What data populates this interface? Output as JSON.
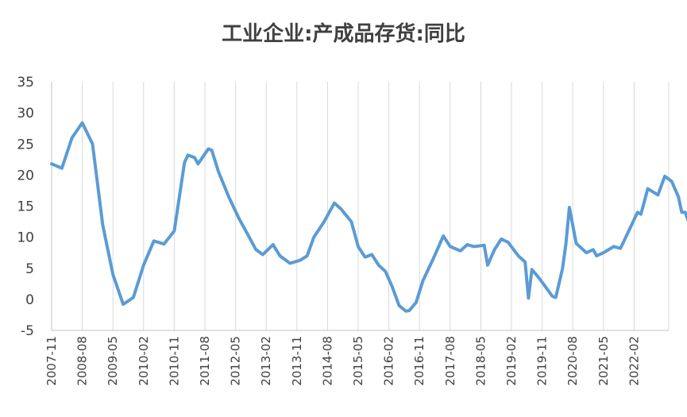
{
  "chart_data": {
    "type": "line",
    "title": "工业企业:产成品存货:同比",
    "xlabel": "",
    "ylabel": "",
    "ylim": [
      -5,
      35
    ],
    "y_ticks": [
      35,
      30,
      25,
      20,
      15,
      10,
      5,
      0,
      -5
    ],
    "x_tick_labels": [
      "2007-11",
      "2008-08",
      "2009-05",
      "2010-02",
      "2010-11",
      "2011-08",
      "2012-05",
      "2013-02",
      "2013-11",
      "2014-08",
      "2015-05",
      "2016-02",
      "2016-11",
      "2017-08",
      "2018-05",
      "2019-02",
      "2019-11",
      "2020-08",
      "2021-05",
      "2022-02"
    ],
    "grid": "vertical",
    "legend": "none",
    "line_color": "#5b9bd5",
    "series": [
      {
        "points": [
          [
            "2007-11",
            21.8
          ],
          [
            "2008-02",
            21.1
          ],
          [
            "2008-05",
            26.0
          ],
          [
            "2008-08",
            28.4
          ],
          [
            "2008-11",
            25.0
          ],
          [
            "2009-02",
            12.0
          ],
          [
            "2009-05",
            4.0
          ],
          [
            "2009-08",
            -0.8
          ],
          [
            "2009-11",
            0.3
          ],
          [
            "2010-02",
            5.5
          ],
          [
            "2010-05",
            9.4
          ],
          [
            "2010-08",
            8.9
          ],
          [
            "2010-11",
            11.0
          ],
          [
            "2011-02",
            22.0
          ],
          [
            "2011-03",
            23.2
          ],
          [
            "2011-05",
            22.8
          ],
          [
            "2011-06",
            21.8
          ],
          [
            "2011-09",
            24.2
          ],
          [
            "2011-10",
            24.0
          ],
          [
            "2011-12",
            20.5
          ],
          [
            "2012-03",
            16.5
          ],
          [
            "2012-06",
            13.0
          ],
          [
            "2012-09",
            10.0
          ],
          [
            "2012-11",
            8.0
          ],
          [
            "2013-01",
            7.2
          ],
          [
            "2013-04",
            8.8
          ],
          [
            "2013-06",
            7.0
          ],
          [
            "2013-09",
            5.8
          ],
          [
            "2013-12",
            6.3
          ],
          [
            "2014-02",
            7.0
          ],
          [
            "2014-04",
            10.0
          ],
          [
            "2014-07",
            12.5
          ],
          [
            "2014-10",
            15.5
          ],
          [
            "2014-12",
            14.5
          ],
          [
            "2015-03",
            12.5
          ],
          [
            "2015-05",
            8.5
          ],
          [
            "2015-07",
            6.8
          ],
          [
            "2015-09",
            7.2
          ],
          [
            "2015-11",
            5.5
          ],
          [
            "2016-01",
            4.5
          ],
          [
            "2016-03",
            2.0
          ],
          [
            "2016-05",
            -1.0
          ],
          [
            "2016-07",
            -1.9
          ],
          [
            "2016-08",
            -1.8
          ],
          [
            "2016-10",
            -0.5
          ],
          [
            "2016-12",
            3.0
          ],
          [
            "2017-03",
            6.5
          ],
          [
            "2017-06",
            10.2
          ],
          [
            "2017-08",
            8.5
          ],
          [
            "2017-11",
            7.8
          ],
          [
            "2018-01",
            8.8
          ],
          [
            "2018-03",
            8.5
          ],
          [
            "2018-06",
            8.7
          ],
          [
            "2018-07",
            5.5
          ],
          [
            "2018-09",
            8.0
          ],
          [
            "2018-11",
            9.7
          ],
          [
            "2019-01",
            9.2
          ],
          [
            "2019-04",
            7.0
          ],
          [
            "2019-06",
            6.0
          ],
          [
            "2019-07",
            0.2
          ],
          [
            "2019-08",
            4.8
          ],
          [
            "2019-10",
            3.5
          ],
          [
            "2019-12",
            2.0
          ],
          [
            "2020-02",
            0.5
          ],
          [
            "2020-03",
            0.3
          ],
          [
            "2020-05",
            5.0
          ],
          [
            "2020-06",
            9.0
          ],
          [
            "2020-07",
            14.8
          ],
          [
            "2020-09",
            9.0
          ],
          [
            "2020-12",
            7.5
          ],
          [
            "2021-02",
            8.0
          ],
          [
            "2021-03",
            7.0
          ],
          [
            "2021-05",
            7.5
          ],
          [
            "2021-08",
            8.5
          ],
          [
            "2021-10",
            8.2
          ],
          [
            "2021-12",
            10.5
          ],
          [
            "2022-03",
            14.0
          ],
          [
            "2022-04",
            13.7
          ],
          [
            "2022-06",
            17.8
          ],
          [
            "2022-09",
            16.8
          ],
          [
            "2022-11",
            19.8
          ],
          [
            "2023-01",
            19.0
          ],
          [
            "2023-03",
            16.5
          ],
          [
            "2023-04",
            14.0
          ],
          [
            "2023-05",
            14.0
          ],
          [
            "2023-06",
            12.5
          ]
        ]
      }
    ]
  }
}
